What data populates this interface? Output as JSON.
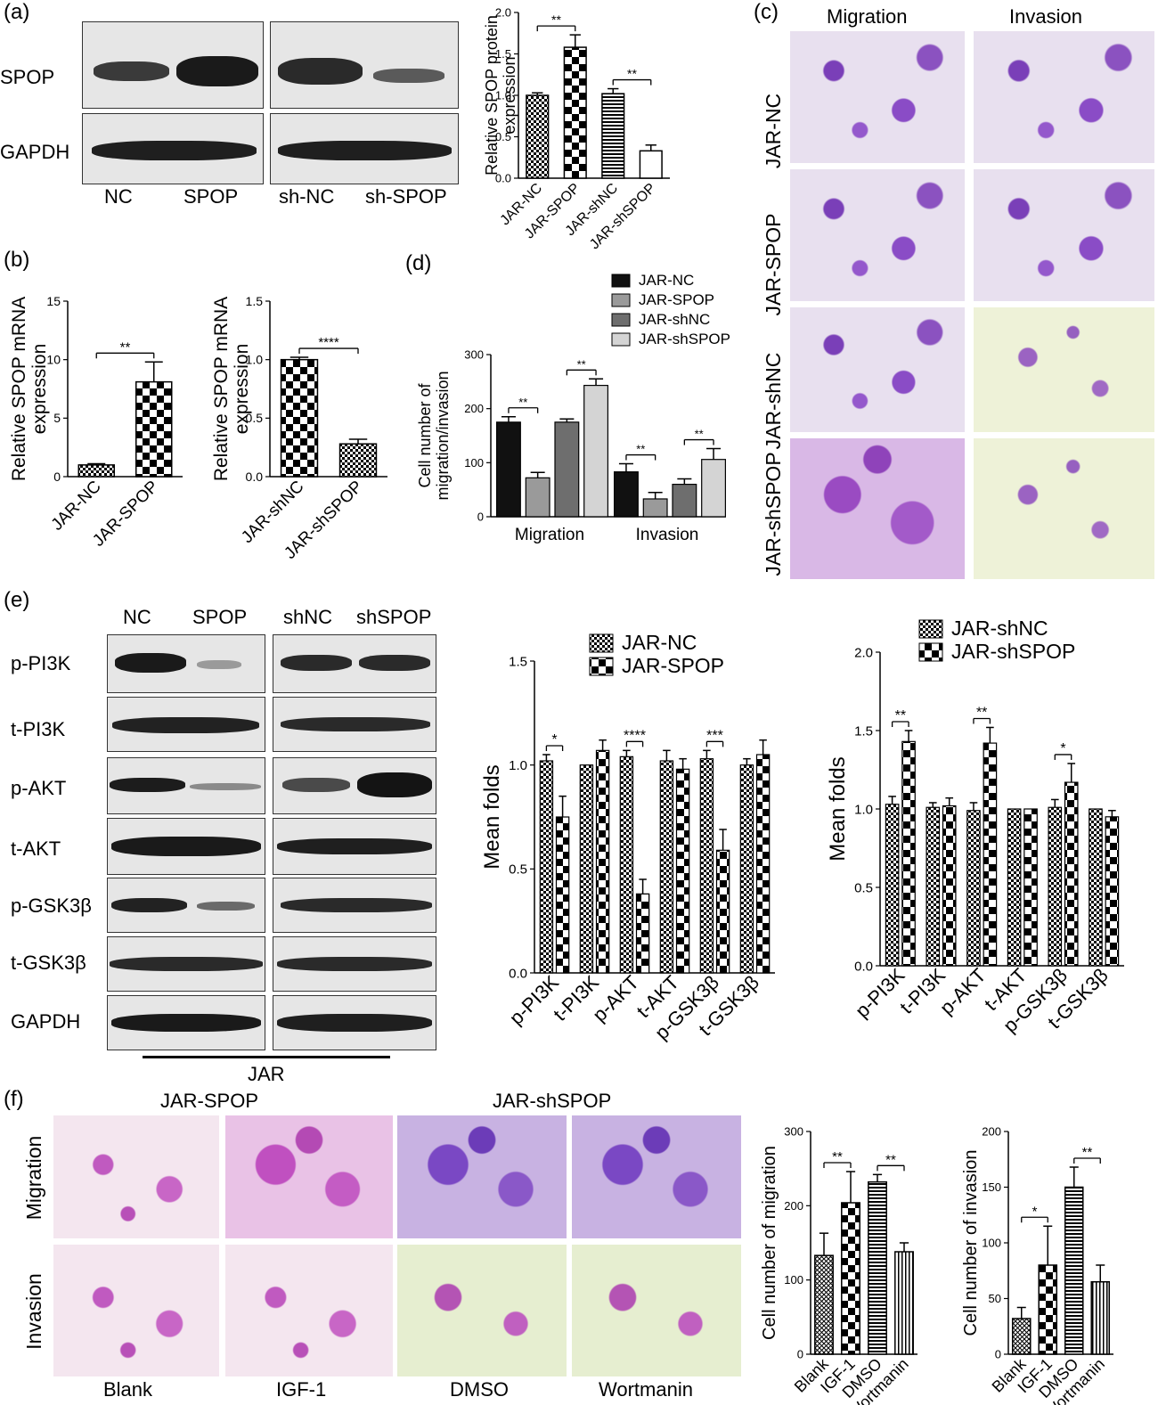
{
  "panel_labels": {
    "a": "(a)",
    "b": "(b)",
    "c": "(c)",
    "d": "(d)",
    "e": "(e)",
    "f": "(f)"
  },
  "blot_a": {
    "rows": [
      "SPOP",
      "GAPDH"
    ],
    "lanes": [
      "NC",
      "SPOP",
      "sh-NC",
      "sh-SPOP"
    ]
  },
  "micro_c": {
    "cols": [
      "Migration",
      "Invasion"
    ],
    "rows": [
      "JAR-NC",
      "JAR-SPOP",
      "JAR-shNC",
      "JAR-shSPOP"
    ]
  },
  "blot_e": {
    "lanes": [
      "NC",
      "SPOP",
      "shNC",
      "shSPOP"
    ],
    "rows": [
      "p-PI3K",
      "t-PI3K",
      "p-AKT",
      "t-AKT",
      "p-GSK3β",
      "t-GSK3β",
      "GAPDH"
    ],
    "group": "JAR"
  },
  "micro_f": {
    "groups": [
      "JAR-SPOP",
      "JAR-shSPOP"
    ],
    "rows": [
      "Migration",
      "Invasion"
    ],
    "cols": [
      "Blank",
      "IGF-1",
      "DMSO",
      "Wortmanin"
    ]
  },
  "chart_data": [
    {
      "id": "a_bar",
      "type": "bar",
      "ylabel": "Relative SPOP protein expression",
      "categories": [
        "JAR-NC",
        "JAR-SPOP",
        "JAR-shNC",
        "JAR-shSPOP"
      ],
      "values": [
        1.0,
        1.58,
        1.02,
        0.33
      ],
      "errors": [
        0.03,
        0.15,
        0.06,
        0.07
      ],
      "ylim": [
        0,
        2.0
      ],
      "yticks": [
        "0.0",
        "0.5",
        "1.0",
        "1.5",
        "2.0"
      ],
      "patterns": [
        "check",
        "bigcheck",
        "hlines",
        "plain"
      ],
      "sig": [
        {
          "from": 0,
          "to": 1,
          "label": "**"
        },
        {
          "from": 2,
          "to": 3,
          "label": "**"
        }
      ]
    },
    {
      "id": "b1_bar",
      "type": "bar",
      "ylabel": "Relative SPOP mRNA expression",
      "categories": [
        "JAR-NC",
        "JAR-SPOP"
      ],
      "values": [
        1.0,
        8.1
      ],
      "errors": [
        0.1,
        1.7
      ],
      "ylim": [
        0,
        15
      ],
      "yticks": [
        "0",
        "5",
        "10",
        "15"
      ],
      "patterns": [
        "check",
        "bigcheck"
      ],
      "sig": [
        {
          "from": 0,
          "to": 1,
          "label": "**"
        }
      ]
    },
    {
      "id": "b2_bar",
      "type": "bar",
      "ylabel": "Relative SPOP mRNA expression",
      "categories": [
        "JAR-shNC",
        "JAR-shSPOP"
      ],
      "values": [
        1.0,
        0.28
      ],
      "errors": [
        0.02,
        0.04
      ],
      "ylim": [
        0,
        1.5
      ],
      "yticks": [
        "0.0",
        "0.5",
        "1.0",
        "1.5"
      ],
      "patterns": [
        "bigcheck",
        "check"
      ],
      "sig": [
        {
          "from": 0,
          "to": 1,
          "label": "****"
        }
      ]
    },
    {
      "id": "d_bar",
      "type": "bar",
      "ylabel": "Cell number of migration/invasion",
      "categories": [
        "Migration",
        "Invasion"
      ],
      "series": [
        {
          "name": "JAR-NC",
          "values": [
            175,
            83
          ],
          "errors": [
            10,
            15
          ],
          "color": "#111111"
        },
        {
          "name": "JAR-SPOP",
          "values": [
            72,
            33
          ],
          "errors": [
            10,
            12
          ],
          "color": "#9a9a9a"
        },
        {
          "name": "JAR-shNC",
          "values": [
            175,
            60
          ],
          "errors": [
            6,
            10
          ],
          "color": "#6e6e6e"
        },
        {
          "name": "JAR-shSPOP",
          "values": [
            243,
            106
          ],
          "errors": [
            12,
            20
          ],
          "color": "#d4d4d4"
        }
      ],
      "ylim": [
        0,
        300
      ],
      "yticks": [
        "0",
        "100",
        "200",
        "300"
      ],
      "sig": [
        {
          "g": 0,
          "from": 0,
          "to": 1,
          "label": "**"
        },
        {
          "g": 0,
          "from": 2,
          "to": 3,
          "label": "**"
        },
        {
          "g": 1,
          "from": 0,
          "to": 1,
          "label": "**"
        },
        {
          "g": 1,
          "from": 2,
          "to": 3,
          "label": "**"
        }
      ],
      "legend": "top-left"
    },
    {
      "id": "e1_bar",
      "type": "bar",
      "ylabel": "Mean folds",
      "categories": [
        "p-PI3K",
        "t-PI3K",
        "p-AKT",
        "t-AKT",
        "p-GSK3β",
        "t-GSK3β"
      ],
      "series": [
        {
          "name": "JAR-NC",
          "values": [
            1.02,
            1.0,
            1.04,
            1.02,
            1.03,
            1.0
          ],
          "errors": [
            0.03,
            0,
            0.03,
            0.05,
            0.04,
            0.03
          ],
          "pattern": "check"
        },
        {
          "name": "JAR-SPOP",
          "values": [
            0.75,
            1.07,
            0.38,
            0.98,
            0.59,
            1.05
          ],
          "errors": [
            0.1,
            0.05,
            0.07,
            0.05,
            0.1,
            0.07
          ],
          "pattern": "bigcheck"
        }
      ],
      "ylim": [
        0,
        1.5
      ],
      "yticks": [
        "0.0",
        "0.5",
        "1.0",
        "1.5"
      ],
      "sig": [
        {
          "c": 0,
          "label": "*"
        },
        {
          "c": 2,
          "label": "****"
        },
        {
          "c": 4,
          "label": "***"
        }
      ],
      "legend": "top"
    },
    {
      "id": "e2_bar",
      "type": "bar",
      "ylabel": "Mean folds",
      "categories": [
        "p-PI3K",
        "t-PI3K",
        "p-AKT",
        "t-AKT",
        "p-GSK3β",
        "t-GSK3β"
      ],
      "series": [
        {
          "name": "JAR-shNC",
          "values": [
            1.03,
            1.01,
            0.99,
            1.0,
            1.01,
            1.0
          ],
          "errors": [
            0.05,
            0.03,
            0.05,
            0,
            0.05,
            0
          ],
          "pattern": "check"
        },
        {
          "name": "JAR-shSPOP",
          "values": [
            1.43,
            1.02,
            1.42,
            1.0,
            1.17,
            0.95
          ],
          "errors": [
            0.07,
            0.05,
            0.1,
            0,
            0.12,
            0.04
          ],
          "pattern": "bigcheck"
        }
      ],
      "ylim": [
        0,
        2.0
      ],
      "yticks": [
        "0.0",
        "0.5",
        "1.0",
        "1.5",
        "2.0"
      ],
      "sig": [
        {
          "c": 0,
          "label": "**"
        },
        {
          "c": 2,
          "label": "**"
        },
        {
          "c": 4,
          "label": "*"
        }
      ],
      "legend": "top"
    },
    {
      "id": "f1_bar",
      "type": "bar",
      "ylabel": "Cell number of migration",
      "categories": [
        "Blank",
        "IGF-1",
        "DMSO",
        "Wortmanin"
      ],
      "values": [
        133,
        204,
        232,
        138
      ],
      "errors": [
        30,
        42,
        10,
        12
      ],
      "ylim": [
        0,
        300
      ],
      "yticks": [
        "0",
        "100",
        "200",
        "300"
      ],
      "patterns": [
        "cross",
        "bigcheck",
        "hlines",
        "vlines"
      ],
      "sig": [
        {
          "from": 0,
          "to": 1,
          "label": "**"
        },
        {
          "from": 2,
          "to": 3,
          "label": "**"
        }
      ]
    },
    {
      "id": "f2_bar",
      "type": "bar",
      "ylabel": "Cell number of invasion",
      "categories": [
        "Blank",
        "IGF-1",
        "DMSO",
        "Wortmanin"
      ],
      "values": [
        32,
        80,
        150,
        65
      ],
      "errors": [
        10,
        35,
        18,
        15
      ],
      "ylim": [
        0,
        200
      ],
      "yticks": [
        "0",
        "50",
        "100",
        "150",
        "200"
      ],
      "patterns": [
        "cross",
        "bigcheck",
        "hlines",
        "vlines"
      ],
      "sig": [
        {
          "from": 0,
          "to": 1,
          "label": "*"
        },
        {
          "from": 2,
          "to": 3,
          "label": "**"
        }
      ]
    }
  ]
}
